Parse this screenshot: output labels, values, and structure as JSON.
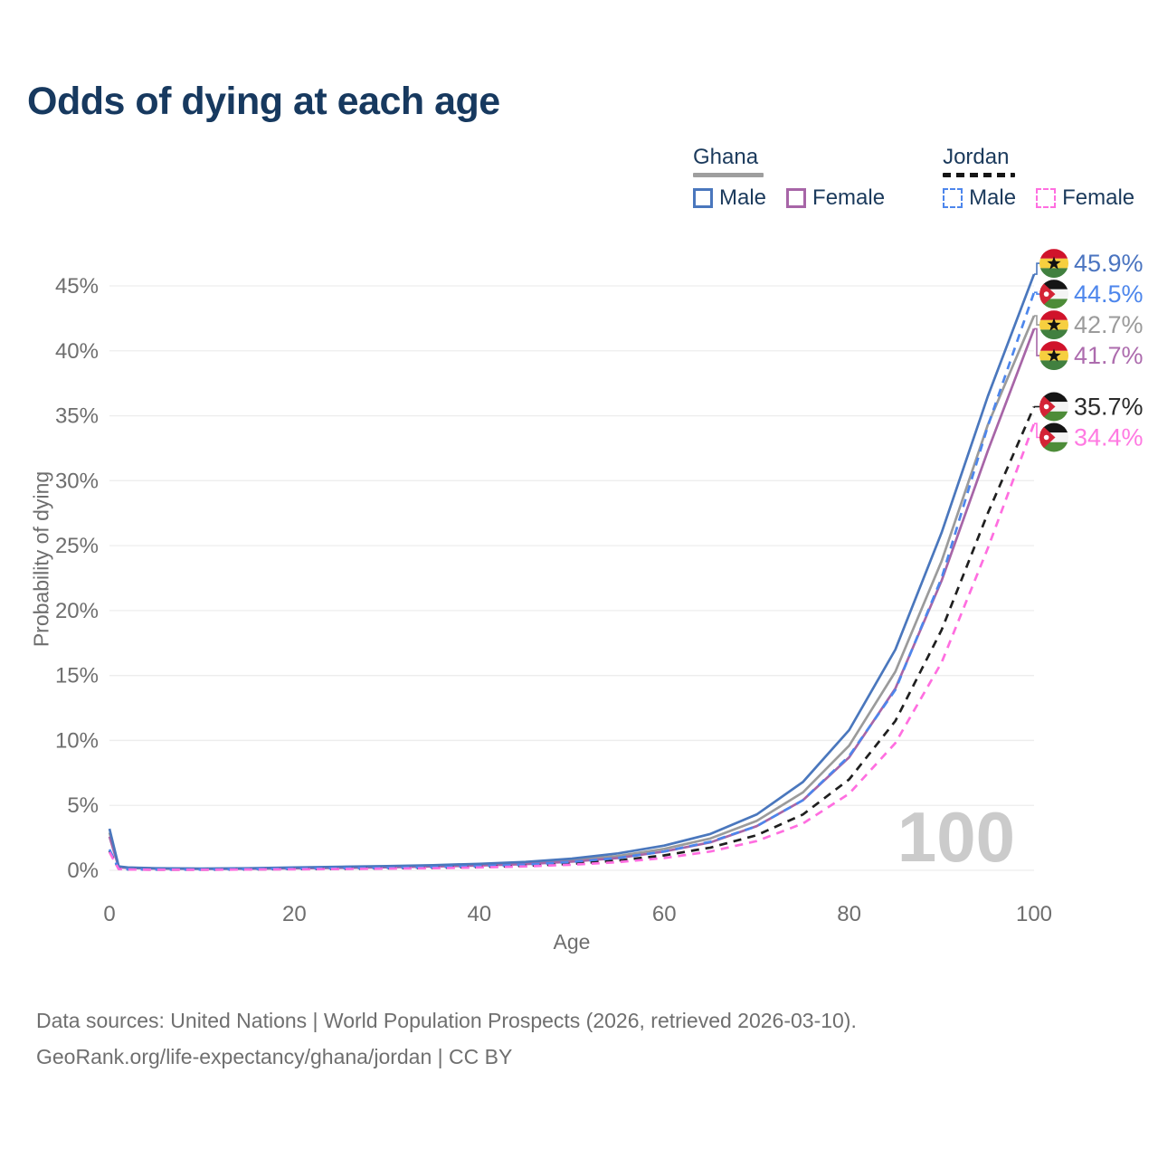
{
  "title": "Odds of dying at each age",
  "legend": {
    "groups": [
      {
        "id": "ghana",
        "label": "Ghana",
        "line_style": "solid",
        "underline_color": "#9e9e9e",
        "items": [
          {
            "label": "Male",
            "color": "#4a77bd"
          },
          {
            "label": "Female",
            "color": "#a765a7"
          }
        ]
      },
      {
        "id": "jordan",
        "label": "Jordan",
        "line_style": "dashed",
        "underline_color": "#161616",
        "items": [
          {
            "label": "Male",
            "color": "#4d86ec"
          },
          {
            "label": "Female",
            "color": "#ff6ee0"
          }
        ]
      }
    ]
  },
  "chart_data": {
    "type": "line",
    "title": "Odds of dying at each age",
    "xlabel": "Age",
    "ylabel": "Probability of dying",
    "xlim": [
      0,
      100
    ],
    "ylim_percent": [
      0,
      47.5
    ],
    "grid": true,
    "legend_position": "top-right",
    "watermark": "100",
    "x_ticks": [
      0,
      20,
      40,
      60,
      80,
      100
    ],
    "y_tick_values": [
      0,
      5,
      10,
      15,
      20,
      25,
      30,
      35,
      40,
      45
    ],
    "y_ticks": [
      "0%",
      "5%",
      "10%",
      "15%",
      "20%",
      "25%",
      "30%",
      "35%",
      "40%",
      "45%"
    ],
    "ages": [
      0,
      1,
      2,
      5,
      10,
      15,
      20,
      25,
      30,
      35,
      40,
      45,
      50,
      55,
      60,
      65,
      70,
      75,
      80,
      85,
      90,
      95,
      100
    ],
    "series": [
      {
        "name": "Ghana Male",
        "country": "Ghana",
        "sex": "Male",
        "line_style": "solid",
        "color": "#4a77bd",
        "label_color": "#4a74c0",
        "end_label": "45.9%",
        "end_value": 45.9,
        "values": [
          3.2,
          0.3,
          0.22,
          0.16,
          0.13,
          0.16,
          0.22,
          0.27,
          0.33,
          0.4,
          0.5,
          0.65,
          0.9,
          1.3,
          1.9,
          2.8,
          4.3,
          6.8,
          10.8,
          17.0,
          26.0,
          36.5,
          45.9
        ]
      },
      {
        "name": "Jordan Male",
        "country": "Jordan",
        "sex": "Male",
        "line_style": "dashed",
        "color": "#4d86ec",
        "label_color": "#4d86ec",
        "end_label": "44.5%",
        "end_value": 44.5,
        "values": [
          1.6,
          0.12,
          0.08,
          0.06,
          0.06,
          0.09,
          0.13,
          0.16,
          0.19,
          0.24,
          0.32,
          0.44,
          0.65,
          0.95,
          1.45,
          2.2,
          3.4,
          5.4,
          8.8,
          13.9,
          22.5,
          34.2,
          44.5
        ]
      },
      {
        "name": "Ghana Both sexes",
        "country": "Ghana",
        "sex": "Both",
        "line_style": "solid",
        "color": "#9b9b9b",
        "label_color": "#9b9b9b",
        "end_label": "42.7%",
        "end_value": 42.7,
        "values": [
          2.9,
          0.27,
          0.2,
          0.14,
          0.12,
          0.14,
          0.18,
          0.23,
          0.28,
          0.34,
          0.43,
          0.56,
          0.78,
          1.1,
          1.65,
          2.45,
          3.8,
          6.0,
          9.6,
          15.3,
          23.8,
          34.3,
          42.7
        ]
      },
      {
        "name": "Ghana Female",
        "country": "Ghana",
        "sex": "Female",
        "line_style": "solid",
        "color": "#a765a7",
        "label_color": "#ad6cae",
        "end_label": "41.7%",
        "end_value": 41.7,
        "values": [
          2.6,
          0.24,
          0.18,
          0.13,
          0.11,
          0.12,
          0.15,
          0.19,
          0.24,
          0.29,
          0.37,
          0.48,
          0.67,
          0.95,
          1.45,
          2.15,
          3.4,
          5.4,
          8.7,
          14.0,
          22.3,
          32.3,
          41.7
        ]
      },
      {
        "name": "Jordan Both sexes",
        "country": "Jordan",
        "sex": "Both",
        "line_style": "dashed",
        "color": "#1f1f1f",
        "label_color": "#2b2b2b",
        "end_label": "35.7%",
        "end_value": 35.7,
        "values": [
          1.5,
          0.11,
          0.07,
          0.05,
          0.05,
          0.07,
          0.1,
          0.12,
          0.15,
          0.19,
          0.26,
          0.35,
          0.5,
          0.75,
          1.15,
          1.75,
          2.7,
          4.3,
          7.0,
          11.5,
          18.5,
          27.5,
          35.7
        ]
      },
      {
        "name": "Jordan Female",
        "country": "Jordan",
        "sex": "Female",
        "line_style": "dashed",
        "color": "#ff6ee0",
        "label_color": "#ff7ae2",
        "end_label": "34.4%",
        "end_value": 34.4,
        "values": [
          1.4,
          0.1,
          0.06,
          0.04,
          0.04,
          0.06,
          0.08,
          0.1,
          0.13,
          0.16,
          0.22,
          0.3,
          0.43,
          0.63,
          0.95,
          1.45,
          2.25,
          3.6,
          5.9,
          9.8,
          16.0,
          24.8,
          34.4
        ]
      }
    ],
    "flag_colors": {
      "ghana": {
        "red": "#d0132b",
        "gold": "#f6cf3f",
        "green": "#41803f",
        "star": "#121212"
      },
      "jordan": {
        "black": "#151515",
        "white": "#f4f4f4",
        "green": "#4d8c38",
        "chevron": "#d42436",
        "star": "#ffffff"
      }
    },
    "axis_color": "#6e6e6e",
    "grid_color": "#ededed",
    "watermark_color": "#cbcbcb"
  },
  "footer": {
    "line1": "Data sources: United Nations | World Population Prospects (2026, retrieved 2026-03-10).",
    "line2": "GeoRank.org/life-expectancy/ghana/jordan | CC BY"
  }
}
